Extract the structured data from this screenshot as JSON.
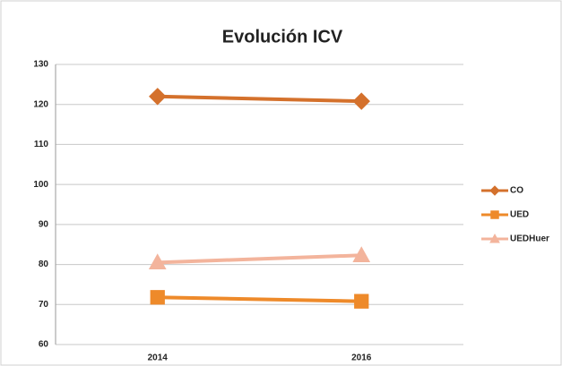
{
  "chart_data": {
    "type": "line",
    "title": "Evolución ICV",
    "categories": [
      "2014",
      "2016"
    ],
    "series": [
      {
        "name": "CO",
        "color": "#d4712c",
        "marker": "diamond",
        "values": [
          122,
          120.8
        ]
      },
      {
        "name": "UED",
        "color": "#ee8a2a",
        "marker": "square",
        "values": [
          71.8,
          70.8
        ]
      },
      {
        "name": "UEDHuer",
        "color": "#f3b49c",
        "marker": "triangle",
        "values": [
          80.5,
          82.3
        ]
      }
    ],
    "ylim": [
      60,
      130
    ],
    "yticks": [
      60,
      70,
      80,
      90,
      100,
      110,
      120,
      130
    ],
    "grid": true,
    "legend": "right"
  }
}
